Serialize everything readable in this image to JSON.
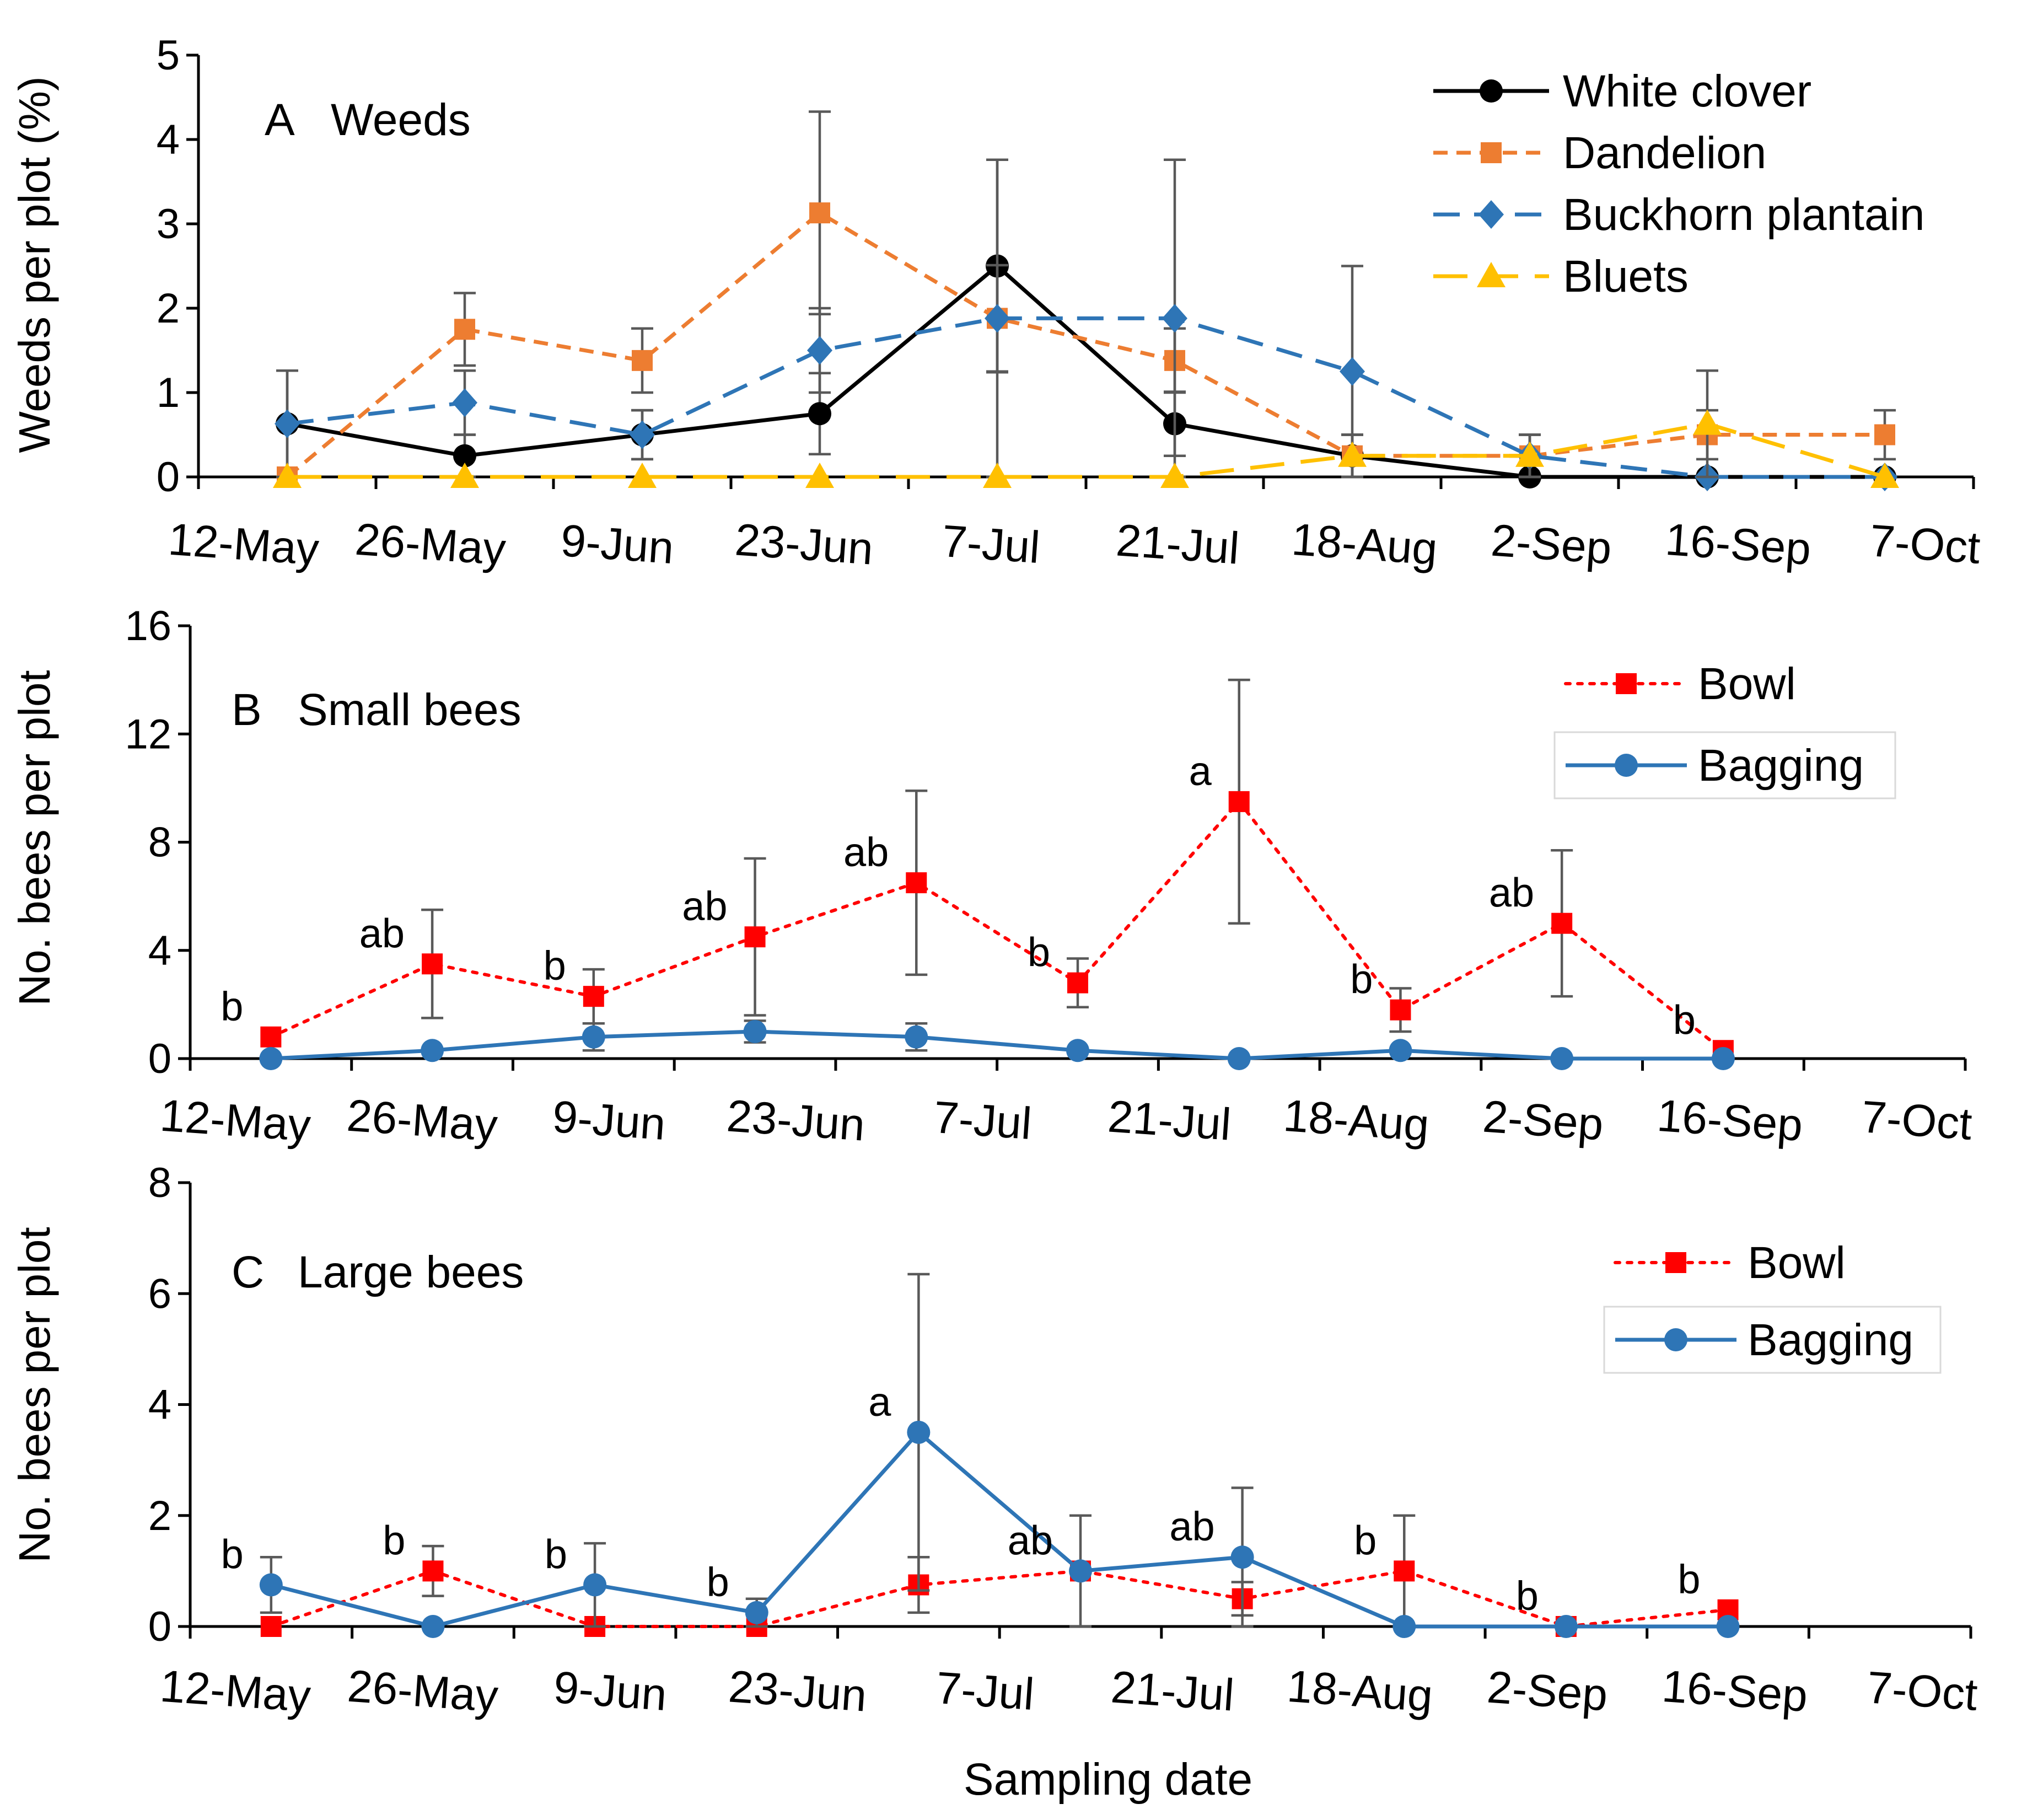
{
  "chart_data": [
    {
      "type": "line",
      "panel": "A",
      "title": "Weeds",
      "ylabel": "Weeds per plot (%)",
      "xlabel": "",
      "ylim": [
        0,
        5
      ],
      "yticks": [
        0,
        1,
        2,
        3,
        4,
        5
      ],
      "categories": [
        "",
        "",
        "",
        "",
        "",
        "",
        "",
        "",
        "",
        ""
      ],
      "xticklabels": [
        "12-May",
        "26-May",
        "9-Jun",
        "23-Jun",
        "7-Jul",
        "21-Jul",
        "18-Aug",
        "2-Sep",
        "16-Sep",
        "7-Oct"
      ],
      "legend_position": "top-right",
      "series": [
        {
          "name": "White clover",
          "color": "#000000",
          "dash": "solid",
          "marker": "circle",
          "values": [
            0.63,
            0.25,
            0.5,
            0.75,
            2.5,
            0.63,
            0.25,
            0,
            0,
            0
          ],
          "errors": [
            0.63,
            0.25,
            0.29,
            0.48,
            1.26,
            0.38,
            0.25,
            0,
            0,
            0
          ]
        },
        {
          "name": "Dandelion",
          "color": "#ED7D31",
          "dash": "short",
          "marker": "square",
          "values": [
            0,
            1.75,
            1.38,
            3.13,
            1.88,
            1.38,
            0.25,
            0.25,
            0.5,
            0.5
          ],
          "errors": [
            0,
            0.43,
            0.38,
            1.2,
            0.63,
            0.38,
            0.25,
            0.25,
            0.29,
            0.29
          ]
        },
        {
          "name": "Buckhorn plantain",
          "color": "#2E75B6",
          "dash": "long",
          "marker": "diamond",
          "values": [
            0.63,
            0.88,
            0.5,
            1.5,
            1.88,
            1.88,
            1.25,
            0.25,
            0,
            0
          ],
          "errors": [
            0.63,
            0.38,
            0.29,
            0.5,
            1.88,
            1.88,
            1.25,
            0.25,
            0,
            0
          ]
        },
        {
          "name": "Bluets",
          "color": "#FFC000",
          "dash": "longdash",
          "marker": "triangle",
          "values": [
            0,
            0,
            0,
            0,
            0,
            0,
            0.25,
            0.25,
            0.63,
            0
          ],
          "errors": [
            0,
            0,
            0,
            0,
            0,
            0,
            0.25,
            0.25,
            0.63,
            0
          ]
        }
      ],
      "labels": []
    },
    {
      "type": "line",
      "panel": "B",
      "title": "Small bees",
      "ylabel": "No. bees per plot",
      "xlabel": "",
      "ylim": [
        0,
        16
      ],
      "yticks": [
        0,
        4,
        8,
        12,
        16
      ],
      "categories": [
        "",
        "",
        "",
        "",
        "",
        "",
        "",
        "",
        "",
        "",
        ""
      ],
      "xticklabels": [
        "12-May",
        "26-May",
        "9-Jun",
        "23-Jun",
        "7-Jul",
        "21-Jul",
        "18-Aug",
        "2-Sep",
        "16-Sep",
        "7-Oct"
      ],
      "legend_position": "top-right",
      "series": [
        {
          "name": "Bowl",
          "color": "#FF0000",
          "dash": "dot",
          "marker": "square",
          "values": [
            0.8,
            3.5,
            2.3,
            4.5,
            6.5,
            2.8,
            9.5,
            1.8,
            5.0,
            0.3,
            null
          ],
          "errors": [
            0,
            2.0,
            1.0,
            2.9,
            3.4,
            0.9,
            4.5,
            0.8,
            2.7,
            0,
            null
          ]
        },
        {
          "name": "Bagging",
          "color": "#2E75B6",
          "dash": "solid",
          "marker": "circle",
          "values": [
            0,
            0.3,
            0.8,
            1.0,
            0.8,
            0.3,
            0,
            0.3,
            0,
            0,
            null
          ],
          "errors": [
            0,
            0,
            0.5,
            0.4,
            0.5,
            0,
            0,
            0,
            0,
            0,
            null
          ]
        }
      ],
      "labels": [
        {
          "i": 0,
          "text": "b"
        },
        {
          "i": 1,
          "text": "ab"
        },
        {
          "i": 2,
          "text": "b"
        },
        {
          "i": 3,
          "text": "ab"
        },
        {
          "i": 4,
          "text": "ab"
        },
        {
          "i": 5,
          "text": "b"
        },
        {
          "i": 6,
          "text": "a"
        },
        {
          "i": 7,
          "text": "b"
        },
        {
          "i": 8,
          "text": "ab"
        },
        {
          "i": 9,
          "text": "b"
        }
      ]
    },
    {
      "type": "line",
      "panel": "C",
      "title": "Large bees",
      "ylabel": "No. bees per plot",
      "xlabel": "Sampling date",
      "ylim": [
        0,
        8
      ],
      "yticks": [
        0,
        2,
        4,
        6,
        8
      ],
      "categories": [
        "",
        "",
        "",
        "",
        "",
        "",
        "",
        "",
        "",
        "",
        ""
      ],
      "xticklabels": [
        "12-May",
        "26-May",
        "9-Jun",
        "23-Jun",
        "7-Jul",
        "21-Jul",
        "18-Aug",
        "2-Sep",
        "16-Sep",
        "7-Oct"
      ],
      "legend_position": "top-right",
      "series": [
        {
          "name": "Bowl",
          "color": "#FF0000",
          "dash": "dot",
          "marker": "square",
          "values": [
            0,
            1.0,
            0,
            0,
            0.75,
            1.0,
            0.5,
            1.0,
            0,
            0.3,
            null
          ],
          "errors": [
            0,
            0.45,
            0,
            0,
            0.5,
            0,
            0.3,
            1.0,
            0,
            0,
            null
          ]
        },
        {
          "name": "Bagging",
          "color": "#2E75B6",
          "dash": "solid",
          "marker": "circle",
          "values": [
            0.75,
            0,
            0.75,
            0.25,
            3.5,
            1.0,
            1.25,
            0,
            0,
            0,
            null
          ],
          "errors": [
            0.5,
            0,
            0.75,
            0.25,
            2.85,
            1.0,
            1.25,
            0,
            0,
            0,
            null
          ]
        }
      ],
      "labels": [
        {
          "i": 0,
          "text": "b"
        },
        {
          "i": 1,
          "text": "b"
        },
        {
          "i": 2,
          "text": "b"
        },
        {
          "i": 3,
          "text": "b"
        },
        {
          "i": 4,
          "text": "a"
        },
        {
          "i": 5,
          "text": "ab"
        },
        {
          "i": 6,
          "text": "ab"
        },
        {
          "i": 7,
          "text": "b"
        },
        {
          "i": 8,
          "text": "b"
        },
        {
          "i": 9,
          "text": "b"
        }
      ]
    }
  ]
}
